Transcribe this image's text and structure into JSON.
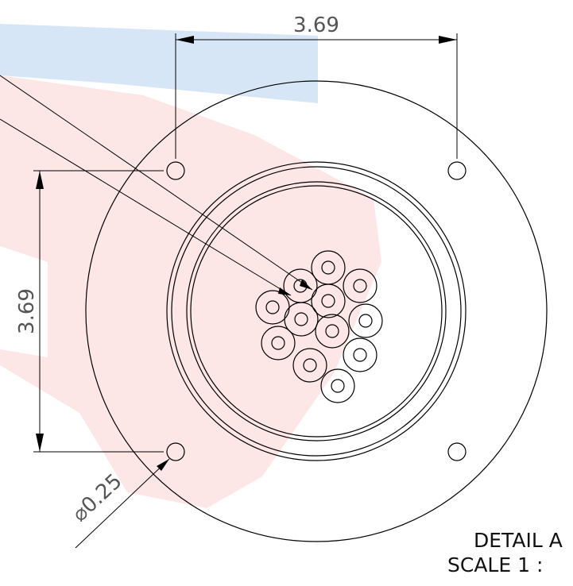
{
  "dimensions": {
    "horizontal_label": "3.69",
    "vertical_label": "3.69",
    "hole_diameter_label": "⌀0.25"
  },
  "note": {
    "detail_label": "DETAIL A",
    "scale_label": "SCALE 1 :"
  },
  "colors": {
    "line": "#000000",
    "dimension_text": "#555555",
    "watermark_blue": "#cfe0f2",
    "watermark_red": "#fde3e3"
  }
}
